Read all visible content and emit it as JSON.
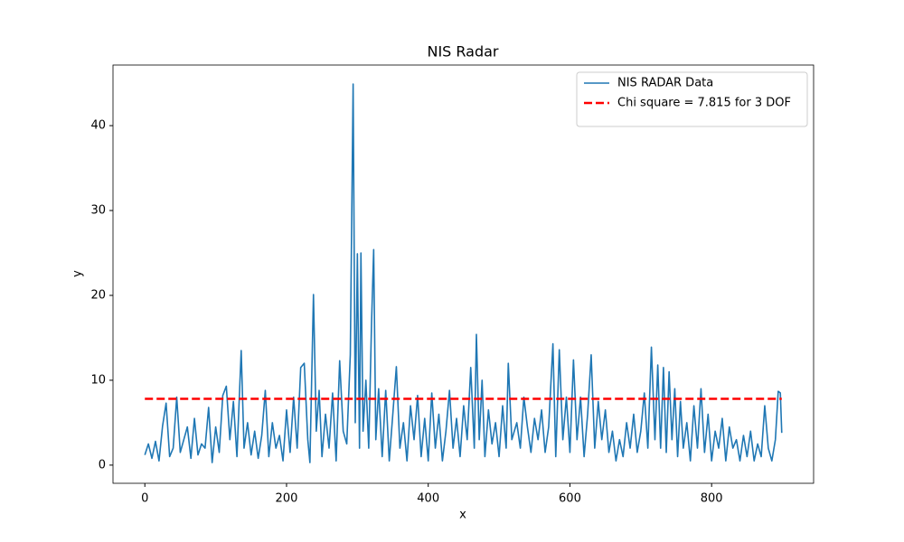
{
  "chart_data": {
    "type": "line",
    "title": "NIS Radar",
    "xlabel": "x",
    "ylabel": "y",
    "xlim": [
      -44.95,
      943.95
    ],
    "ylim": [
      -2.14,
      47.14
    ],
    "xticks": [
      0,
      200,
      400,
      600,
      800
    ],
    "yticks": [
      0,
      10,
      20,
      30,
      40
    ],
    "legend": "upper right",
    "series": [
      {
        "name": "NIS RADAR Data",
        "color": "#1f77b4",
        "linestyle": "solid",
        "x": [
          0,
          5,
          10,
          15,
          20,
          25,
          30,
          35,
          40,
          45,
          50,
          55,
          60,
          65,
          70,
          75,
          80,
          85,
          90,
          95,
          100,
          105,
          110,
          115,
          120,
          125,
          130,
          136,
          140,
          145,
          150,
          155,
          160,
          165,
          170,
          175,
          180,
          185,
          190,
          195,
          200,
          205,
          210,
          215,
          220,
          225,
          230,
          233,
          238,
          242,
          246,
          250,
          255,
          260,
          265,
          270,
          275,
          280,
          285,
          290,
          294,
          297,
          300,
          303,
          305,
          308,
          312,
          316,
          320,
          323,
          326,
          330,
          335,
          340,
          345,
          350,
          355,
          360,
          365,
          370,
          375,
          380,
          385,
          390,
          395,
          400,
          405,
          410,
          415,
          420,
          425,
          430,
          435,
          440,
          445,
          450,
          455,
          460,
          465,
          468,
          472,
          476,
          480,
          485,
          490,
          495,
          500,
          505,
          510,
          513,
          518,
          525,
          530,
          535,
          540,
          545,
          550,
          555,
          560,
          565,
          570,
          576,
          580,
          585,
          590,
          595,
          600,
          605,
          610,
          615,
          620,
          625,
          630,
          635,
          640,
          645,
          650,
          655,
          660,
          665,
          670,
          675,
          680,
          685,
          690,
          695,
          700,
          705,
          710,
          715,
          720,
          724,
          728,
          732,
          736,
          740,
          744,
          748,
          752,
          756,
          760,
          765,
          770,
          775,
          780,
          785,
          790,
          795,
          800,
          805,
          810,
          815,
          820,
          825,
          830,
          835,
          840,
          845,
          850,
          855,
          860,
          865,
          870,
          875,
          880,
          885,
          890,
          894,
          897,
          899
        ],
        "values": [
          1.2,
          2.5,
          0.8,
          2.8,
          0.5,
          4.6,
          7.3,
          1.0,
          2.0,
          8.0,
          1.5,
          3.0,
          4.5,
          0.8,
          5.5,
          1.2,
          2.5,
          2.0,
          6.8,
          0.3,
          4.5,
          1.5,
          8.2,
          9.3,
          3.0,
          7.5,
          1.0,
          13.5,
          2.0,
          5.0,
          1.2,
          4.0,
          0.8,
          3.5,
          8.8,
          1.0,
          5.0,
          2.0,
          3.5,
          0.5,
          6.5,
          1.5,
          8.0,
          2.0,
          11.5,
          12.0,
          3.0,
          0.3,
          20.1,
          4.0,
          8.8,
          1.0,
          6.0,
          2.0,
          8.5,
          0.5,
          12.3,
          4.0,
          2.5,
          13.0,
          44.9,
          5.0,
          24.9,
          2.0,
          25.0,
          4.0,
          10.0,
          2.0,
          16.8,
          25.4,
          3.0,
          9.0,
          1.0,
          8.8,
          0.5,
          6.0,
          11.6,
          2.0,
          5.0,
          0.5,
          7.0,
          3.0,
          8.2,
          1.0,
          5.5,
          0.5,
          8.5,
          2.0,
          6.0,
          0.5,
          4.0,
          8.8,
          2.0,
          5.5,
          1.0,
          7.0,
          3.0,
          11.5,
          2.0,
          15.4,
          3.0,
          10.0,
          1.0,
          6.5,
          2.5,
          5.0,
          1.0,
          7.0,
          2.0,
          12.0,
          3.0,
          5.0,
          2.0,
          8.0,
          4.5,
          1.5,
          5.5,
          3.0,
          6.5,
          1.5,
          4.5,
          14.3,
          1.0,
          13.6,
          3.0,
          8.0,
          1.5,
          12.4,
          3.0,
          8.0,
          1.0,
          6.0,
          13.0,
          2.0,
          7.5,
          3.0,
          6.5,
          1.5,
          4.0,
          0.5,
          3.0,
          1.0,
          5.0,
          2.0,
          6.0,
          1.5,
          4.0,
          8.5,
          2.0,
          13.9,
          3.0,
          11.8,
          2.0,
          11.5,
          1.5,
          11.0,
          3.0,
          9.0,
          1.0,
          7.5,
          2.0,
          5.0,
          0.5,
          7.0,
          2.0,
          9.0,
          1.5,
          6.0,
          0.5,
          4.0,
          2.0,
          5.5,
          0.5,
          4.5,
          2.0,
          3.0,
          0.5,
          3.5,
          1.0,
          4.0,
          0.5,
          2.5,
          1.0,
          7.0,
          2.0,
          0.5,
          3.0,
          8.7,
          8.5,
          3.8
        ]
      },
      {
        "name": "Chi square = 7.815 for 3 DOF",
        "color": "#ff0000",
        "linestyle": "dashed",
        "x": [
          0,
          899
        ],
        "values": [
          7.815,
          7.815
        ]
      }
    ]
  }
}
